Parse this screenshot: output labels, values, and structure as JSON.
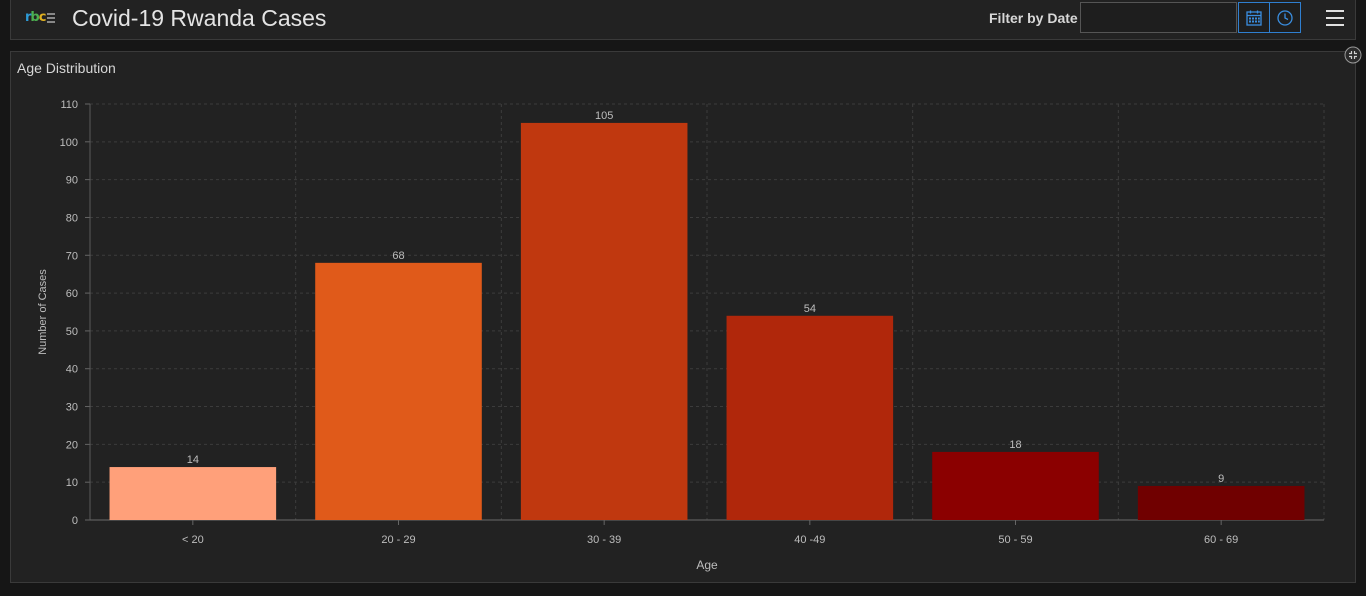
{
  "header": {
    "logo_text": {
      "r": "r",
      "b": "b",
      "c": "c"
    },
    "title": "Covid-19 Rwanda Cases",
    "filter_label": "Filter by Date",
    "filter_input_value": "",
    "calendar_icon": "calendar-icon",
    "clock_icon": "clock-icon",
    "menu_icon": "hamburger-menu-icon"
  },
  "panel": {
    "title": "Age Distribution",
    "expand_icon": "expand-icon"
  },
  "colors": {
    "accent": "#2f7fd0",
    "bars": [
      "#ffa07a",
      "#e05a1a",
      "#c0380f",
      "#b0270b",
      "#8b0000",
      "#700000"
    ]
  },
  "chart_data": {
    "type": "bar",
    "categories": [
      "< 20",
      "20 - 29",
      "30 - 39",
      "40 -49",
      "50 - 59",
      "60 - 69"
    ],
    "values": [
      14,
      68,
      105,
      54,
      18,
      9
    ],
    "xlabel": "Age",
    "ylabel": "Number of Cases",
    "ylim": [
      0,
      110
    ],
    "yticks": [
      0,
      10,
      20,
      30,
      40,
      50,
      60,
      70,
      80,
      90,
      100,
      110
    ],
    "grid": true,
    "data_labels": true
  }
}
